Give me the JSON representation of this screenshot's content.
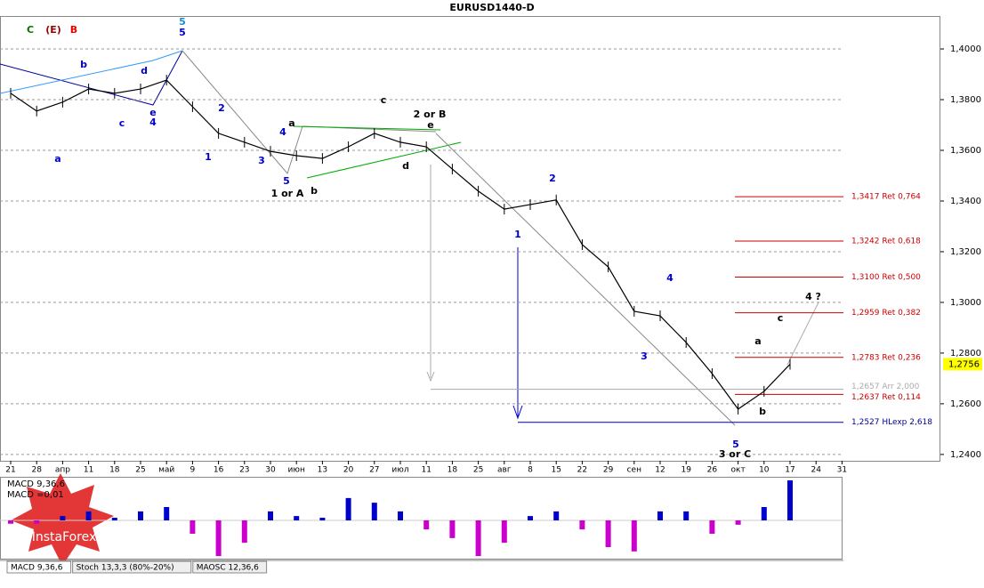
{
  "chart_data": {
    "type": "line",
    "title": "EURUSD1440-D",
    "categories": [
      "21",
      "28",
      "апр",
      "11",
      "18",
      "25",
      "май",
      "9",
      "16",
      "23",
      "30",
      "июн",
      "13",
      "20",
      "27",
      "июл",
      "11",
      "18",
      "25",
      "авг",
      "8",
      "15",
      "22",
      "29",
      "сен",
      "12",
      "19",
      "26",
      "окт",
      "10",
      "17",
      "24",
      "31"
    ],
    "series": [
      {
        "name": "EURUSD",
        "color": "#000000",
        "values": [
          1.3825,
          1.3755,
          1.379,
          1.3842,
          1.3825,
          1.3842,
          1.3877,
          1.3772,
          1.3667,
          1.3632,
          1.3596,
          1.3579,
          1.3568,
          1.3614,
          1.3667,
          1.3632,
          1.3614,
          1.3526,
          1.3439,
          1.3368,
          1.3386,
          1.3404,
          1.3228,
          1.314,
          1.2965,
          1.2947,
          1.2842,
          1.2719,
          1.2579,
          1.2649,
          1.2756,
          null,
          null
        ]
      }
    ],
    "ylim": [
      1.2375,
      1.413
    ],
    "yticks": [
      {
        "value": 1.4,
        "label": "1,4000"
      },
      {
        "value": 1.38,
        "label": "1,3800"
      },
      {
        "value": 1.36,
        "label": "1,3600"
      },
      {
        "value": 1.34,
        "label": "1,3400"
      },
      {
        "value": 1.32,
        "label": "1,3200"
      },
      {
        "value": 1.3,
        "label": "1,3000"
      },
      {
        "value": 1.28,
        "label": "1,2800"
      },
      {
        "value": 1.26,
        "label": "1,2600"
      },
      {
        "value": 1.24,
        "label": "1,2400"
      }
    ],
    "grid": true,
    "last_price": {
      "value": 1.2756,
      "label": "1,2756"
    },
    "levels": [
      {
        "value": 1.3417,
        "label": "1,3417 Ret 0,764",
        "color": "#cc0000"
      },
      {
        "value": 1.3242,
        "label": "1,3242 Ret 0,618",
        "color": "#cc0000"
      },
      {
        "value": 1.31,
        "label": "1,3100 Ret 0,500",
        "color": "#cc0000"
      },
      {
        "value": 1.2959,
        "label": "1,2959 Ret 0,382",
        "color": "#cc0000"
      },
      {
        "value": 1.2783,
        "label": "1,2783 Ret 0,236",
        "color": "#cc0000"
      },
      {
        "value": 1.2657,
        "label": "1,2657 Arr 2,000",
        "color": "#aaaaaa"
      },
      {
        "value": 1.2637,
        "label": "1,2637 Ret 0,114",
        "color": "#cc0000"
      },
      {
        "value": 1.2527,
        "label": "1,2527 HLexp 2,618",
        "color": "#000099"
      }
    ],
    "annotations": [
      "C",
      "(E)",
      "B",
      "5",
      "5",
      "1 or A",
      "2 or B",
      "3 or C",
      "4 ?",
      "c",
      "a",
      "b",
      "d",
      "e",
      "1",
      "2",
      "3",
      "4",
      "c",
      "a",
      "b",
      "5",
      "2",
      "3",
      "4",
      "5",
      "d",
      "b",
      "e",
      "4",
      "c",
      "a",
      "1"
    ],
    "macd": {
      "labels": [
        "MACD 9,36,6",
        "MACD =0,01"
      ],
      "positive_color": "#0000cc",
      "negative_color": "#cc00cc",
      "values": [
        -0.001,
        -0.001,
        0.0013,
        0.0027,
        0.0008,
        0.0027,
        0.004,
        -0.004,
        -0.0107,
        -0.0067,
        0.0027,
        0.0013,
        0.0008,
        0.0067,
        0.0053,
        0.0027,
        -0.0027,
        -0.0053,
        -0.0107,
        -0.0067,
        0.0013,
        0.0027,
        -0.0027,
        -0.008,
        -0.0093,
        0.0027,
        0.0027,
        -0.004,
        -0.0013,
        0.004,
        0.012,
        null,
        null
      ]
    },
    "tabs": [
      "MACD 9,36,6",
      "Stoch 13,3,3 (80%-20%)",
      "MAOSC 12,36,6"
    ],
    "logo": "InstaForex"
  }
}
